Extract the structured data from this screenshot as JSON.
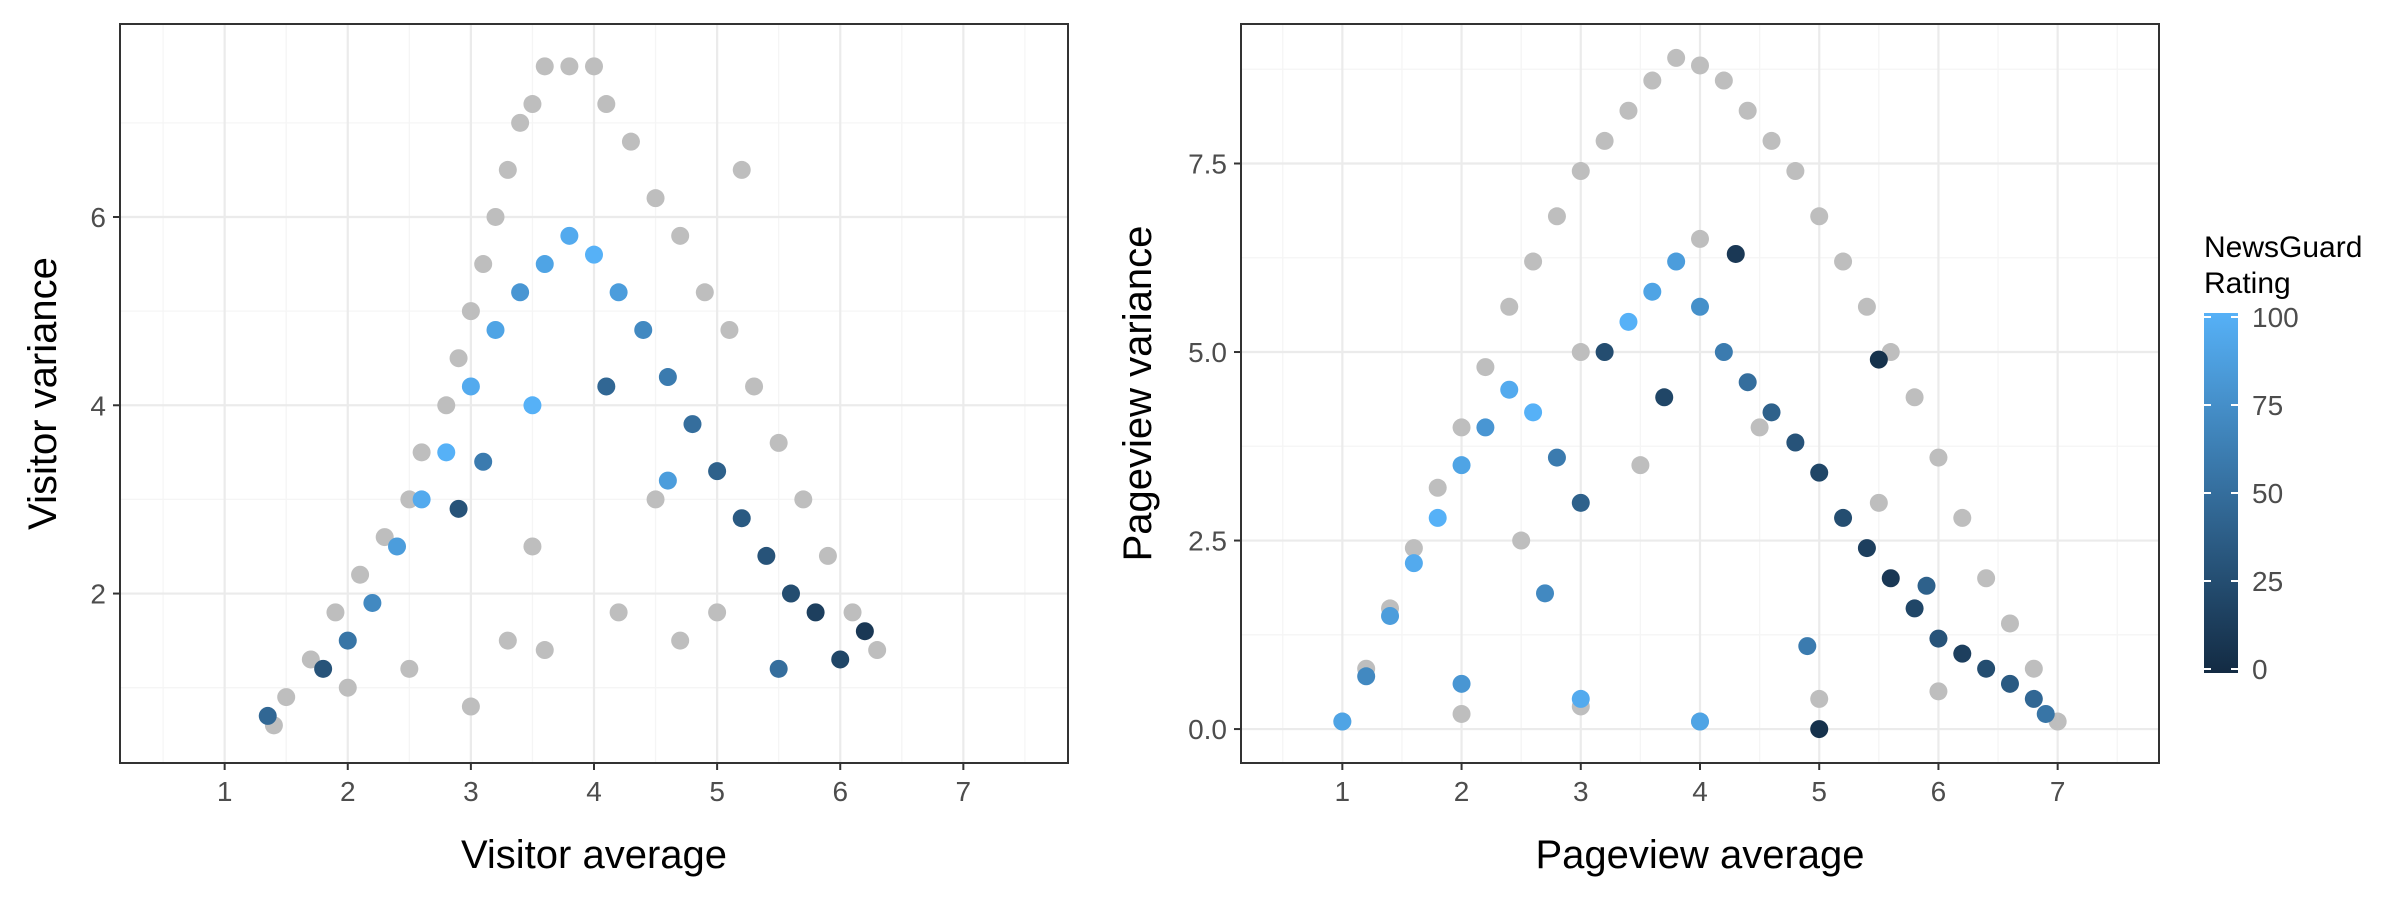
{
  "chart_data": [
    {
      "type": "scatter",
      "xlabel": "Visitor average",
      "ylabel": "Visitor variance",
      "xlim": [
        0.15,
        7.85
      ],
      "ylim": [
        0.2,
        8.05
      ],
      "x_ticks": [
        1,
        2,
        3,
        4,
        5,
        6,
        7
      ],
      "y_ticks": [
        2,
        4,
        6
      ],
      "grid": true,
      "series": [
        {
          "color": "#bebebe",
          "points": [
            [
              1.4,
              0.6
            ],
            [
              1.5,
              0.9
            ],
            [
              1.7,
              1.3
            ],
            [
              1.9,
              1.8
            ],
            [
              2.1,
              2.2
            ],
            [
              2.3,
              2.6
            ],
            [
              2.5,
              3.0
            ],
            [
              2.6,
              3.5
            ],
            [
              2.8,
              4.0
            ],
            [
              2.9,
              4.5
            ],
            [
              3.0,
              5.0
            ],
            [
              3.1,
              5.5
            ],
            [
              3.2,
              6.0
            ],
            [
              3.3,
              6.5
            ],
            [
              3.4,
              7.0
            ],
            [
              3.5,
              7.2
            ],
            [
              3.6,
              7.6
            ],
            [
              3.8,
              7.6
            ],
            [
              4.0,
              7.6
            ],
            [
              4.1,
              7.2
            ],
            [
              4.3,
              6.8
            ],
            [
              4.5,
              6.2
            ],
            [
              4.7,
              5.8
            ],
            [
              4.9,
              5.2
            ],
            [
              5.1,
              4.8
            ],
            [
              5.3,
              4.2
            ],
            [
              5.5,
              3.6
            ],
            [
              5.7,
              3.0
            ],
            [
              5.9,
              2.4
            ],
            [
              6.1,
              1.8
            ],
            [
              6.3,
              1.4
            ],
            [
              2.0,
              1.0
            ],
            [
              2.5,
              1.2
            ],
            [
              3.0,
              0.8
            ],
            [
              3.3,
              1.5
            ],
            [
              3.6,
              1.4
            ],
            [
              4.2,
              1.8
            ],
            [
              4.7,
              1.5
            ],
            [
              5.0,
              1.8
            ],
            [
              3.5,
              2.5
            ],
            [
              4.5,
              3.0
            ],
            [
              5.2,
              6.5
            ]
          ]
        }
      ],
      "highlight_points": [
        [
          1.35,
          0.7,
          45
        ],
        [
          1.8,
          1.2,
          30
        ],
        [
          2.0,
          1.5,
          55
        ],
        [
          2.2,
          1.9,
          70
        ],
        [
          2.4,
          2.5,
          85
        ],
        [
          2.6,
          3.0,
          95
        ],
        [
          2.8,
          3.5,
          100
        ],
        [
          3.0,
          4.2,
          95
        ],
        [
          3.2,
          4.8,
          90
        ],
        [
          3.4,
          5.2,
          80
        ],
        [
          3.6,
          5.5,
          90
        ],
        [
          3.8,
          5.8,
          95
        ],
        [
          4.0,
          5.6,
          100
        ],
        [
          4.2,
          5.2,
          85
        ],
        [
          4.4,
          4.8,
          70
        ],
        [
          4.6,
          4.3,
          60
        ],
        [
          4.8,
          3.8,
          50
        ],
        [
          5.0,
          3.3,
          40
        ],
        [
          5.2,
          2.8,
          35
        ],
        [
          5.4,
          2.4,
          30
        ],
        [
          5.6,
          2.0,
          25
        ],
        [
          5.8,
          1.8,
          15
        ],
        [
          6.0,
          1.3,
          20
        ],
        [
          6.2,
          1.6,
          10
        ],
        [
          3.5,
          4.0,
          100
        ],
        [
          3.1,
          3.4,
          60
        ],
        [
          2.9,
          2.9,
          30
        ],
        [
          4.1,
          4.2,
          45
        ],
        [
          4.6,
          3.2,
          85
        ],
        [
          5.5,
          1.2,
          50
        ]
      ]
    },
    {
      "type": "scatter",
      "xlabel": "Pageview average",
      "ylabel": "Pageview variance",
      "xlim": [
        0.15,
        7.85
      ],
      "ylim": [
        -0.45,
        9.35
      ],
      "x_ticks": [
        1,
        2,
        3,
        4,
        5,
        6,
        7
      ],
      "y_ticks": [
        "0.0",
        "2.5",
        "5.0",
        "7.5"
      ],
      "y_tick_values": [
        0,
        2.5,
        5,
        7.5
      ],
      "grid": true,
      "series": [
        {
          "color": "#bebebe",
          "points": [
            [
              1.0,
              0.1
            ],
            [
              1.2,
              0.8
            ],
            [
              1.4,
              1.6
            ],
            [
              1.6,
              2.4
            ],
            [
              1.8,
              3.2
            ],
            [
              2.0,
              4.0
            ],
            [
              2.2,
              4.8
            ],
            [
              2.4,
              5.6
            ],
            [
              2.6,
              6.2
            ],
            [
              2.8,
              6.8
            ],
            [
              3.0,
              7.4
            ],
            [
              3.2,
              7.8
            ],
            [
              3.4,
              8.2
            ],
            [
              3.6,
              8.6
            ],
            [
              3.8,
              8.9
            ],
            [
              4.0,
              8.8
            ],
            [
              4.2,
              8.6
            ],
            [
              4.4,
              8.2
            ],
            [
              4.6,
              7.8
            ],
            [
              4.8,
              7.4
            ],
            [
              5.0,
              6.8
            ],
            [
              5.2,
              6.2
            ],
            [
              5.4,
              5.6
            ],
            [
              5.6,
              5.0
            ],
            [
              5.8,
              4.4
            ],
            [
              6.0,
              3.6
            ],
            [
              6.2,
              2.8
            ],
            [
              6.4,
              2.0
            ],
            [
              6.6,
              1.4
            ],
            [
              6.8,
              0.8
            ],
            [
              7.0,
              0.1
            ],
            [
              2.0,
              0.2
            ],
            [
              3.0,
              0.3
            ],
            [
              4.0,
              0.1
            ],
            [
              5.0,
              0.4
            ],
            [
              6.0,
              0.5
            ],
            [
              2.5,
              2.5
            ],
            [
              3.5,
              3.5
            ],
            [
              4.5,
              4.0
            ],
            [
              5.5,
              3.0
            ],
            [
              3.0,
              5.0
            ],
            [
              4.0,
              6.5
            ]
          ]
        }
      ],
      "highlight_points": [
        [
          1.0,
          0.1,
          90
        ],
        [
          1.2,
          0.7,
          70
        ],
        [
          1.4,
          1.5,
          85
        ],
        [
          1.6,
          2.2,
          95
        ],
        [
          1.8,
          2.8,
          100
        ],
        [
          2.0,
          3.5,
          90
        ],
        [
          2.2,
          4.0,
          80
        ],
        [
          2.4,
          4.5,
          95
        ],
        [
          2.6,
          4.2,
          100
        ],
        [
          2.8,
          3.6,
          60
        ],
        [
          3.0,
          3.0,
          40
        ],
        [
          3.2,
          5.0,
          25
        ],
        [
          3.4,
          5.4,
          100
        ],
        [
          3.6,
          5.8,
          90
        ],
        [
          3.8,
          6.2,
          85
        ],
        [
          4.0,
          5.6,
          75
        ],
        [
          4.2,
          5.0,
          60
        ],
        [
          4.4,
          4.6,
          50
        ],
        [
          4.6,
          4.2,
          40
        ],
        [
          4.8,
          3.8,
          30
        ],
        [
          5.0,
          3.4,
          20
        ],
        [
          5.2,
          2.8,
          25
        ],
        [
          5.4,
          2.4,
          15
        ],
        [
          5.6,
          2.0,
          10
        ],
        [
          5.8,
          1.6,
          20
        ],
        [
          6.0,
          1.2,
          30
        ],
        [
          6.2,
          1.0,
          15
        ],
        [
          6.4,
          0.8,
          25
        ],
        [
          6.6,
          0.6,
          35
        ],
        [
          6.8,
          0.4,
          45
        ],
        [
          6.9,
          0.2,
          55
        ],
        [
          4.0,
          0.1,
          90
        ],
        [
          5.0,
          0.0,
          5
        ],
        [
          3.0,
          0.4,
          95
        ],
        [
          2.0,
          0.6,
          80
        ],
        [
          4.3,
          6.3,
          10
        ],
        [
          5.5,
          4.9,
          5
        ],
        [
          3.7,
          4.4,
          20
        ],
        [
          2.7,
          1.8,
          70
        ],
        [
          4.9,
          1.1,
          60
        ],
        [
          5.9,
          1.9,
          40
        ]
      ]
    }
  ],
  "legend": {
    "title": "NewsGuard\nRating",
    "ticks": [
      0,
      25,
      50,
      75,
      100
    ],
    "low_color": "#132b43",
    "high_color": "#56b1f7",
    "placement": "right"
  },
  "colors": {
    "background_point": "#bebebe",
    "panel_border": "#333333",
    "grid_major": "#ebebeb",
    "grid_minor": "#f5f5f5",
    "tick_text": "#4d4d4d"
  }
}
